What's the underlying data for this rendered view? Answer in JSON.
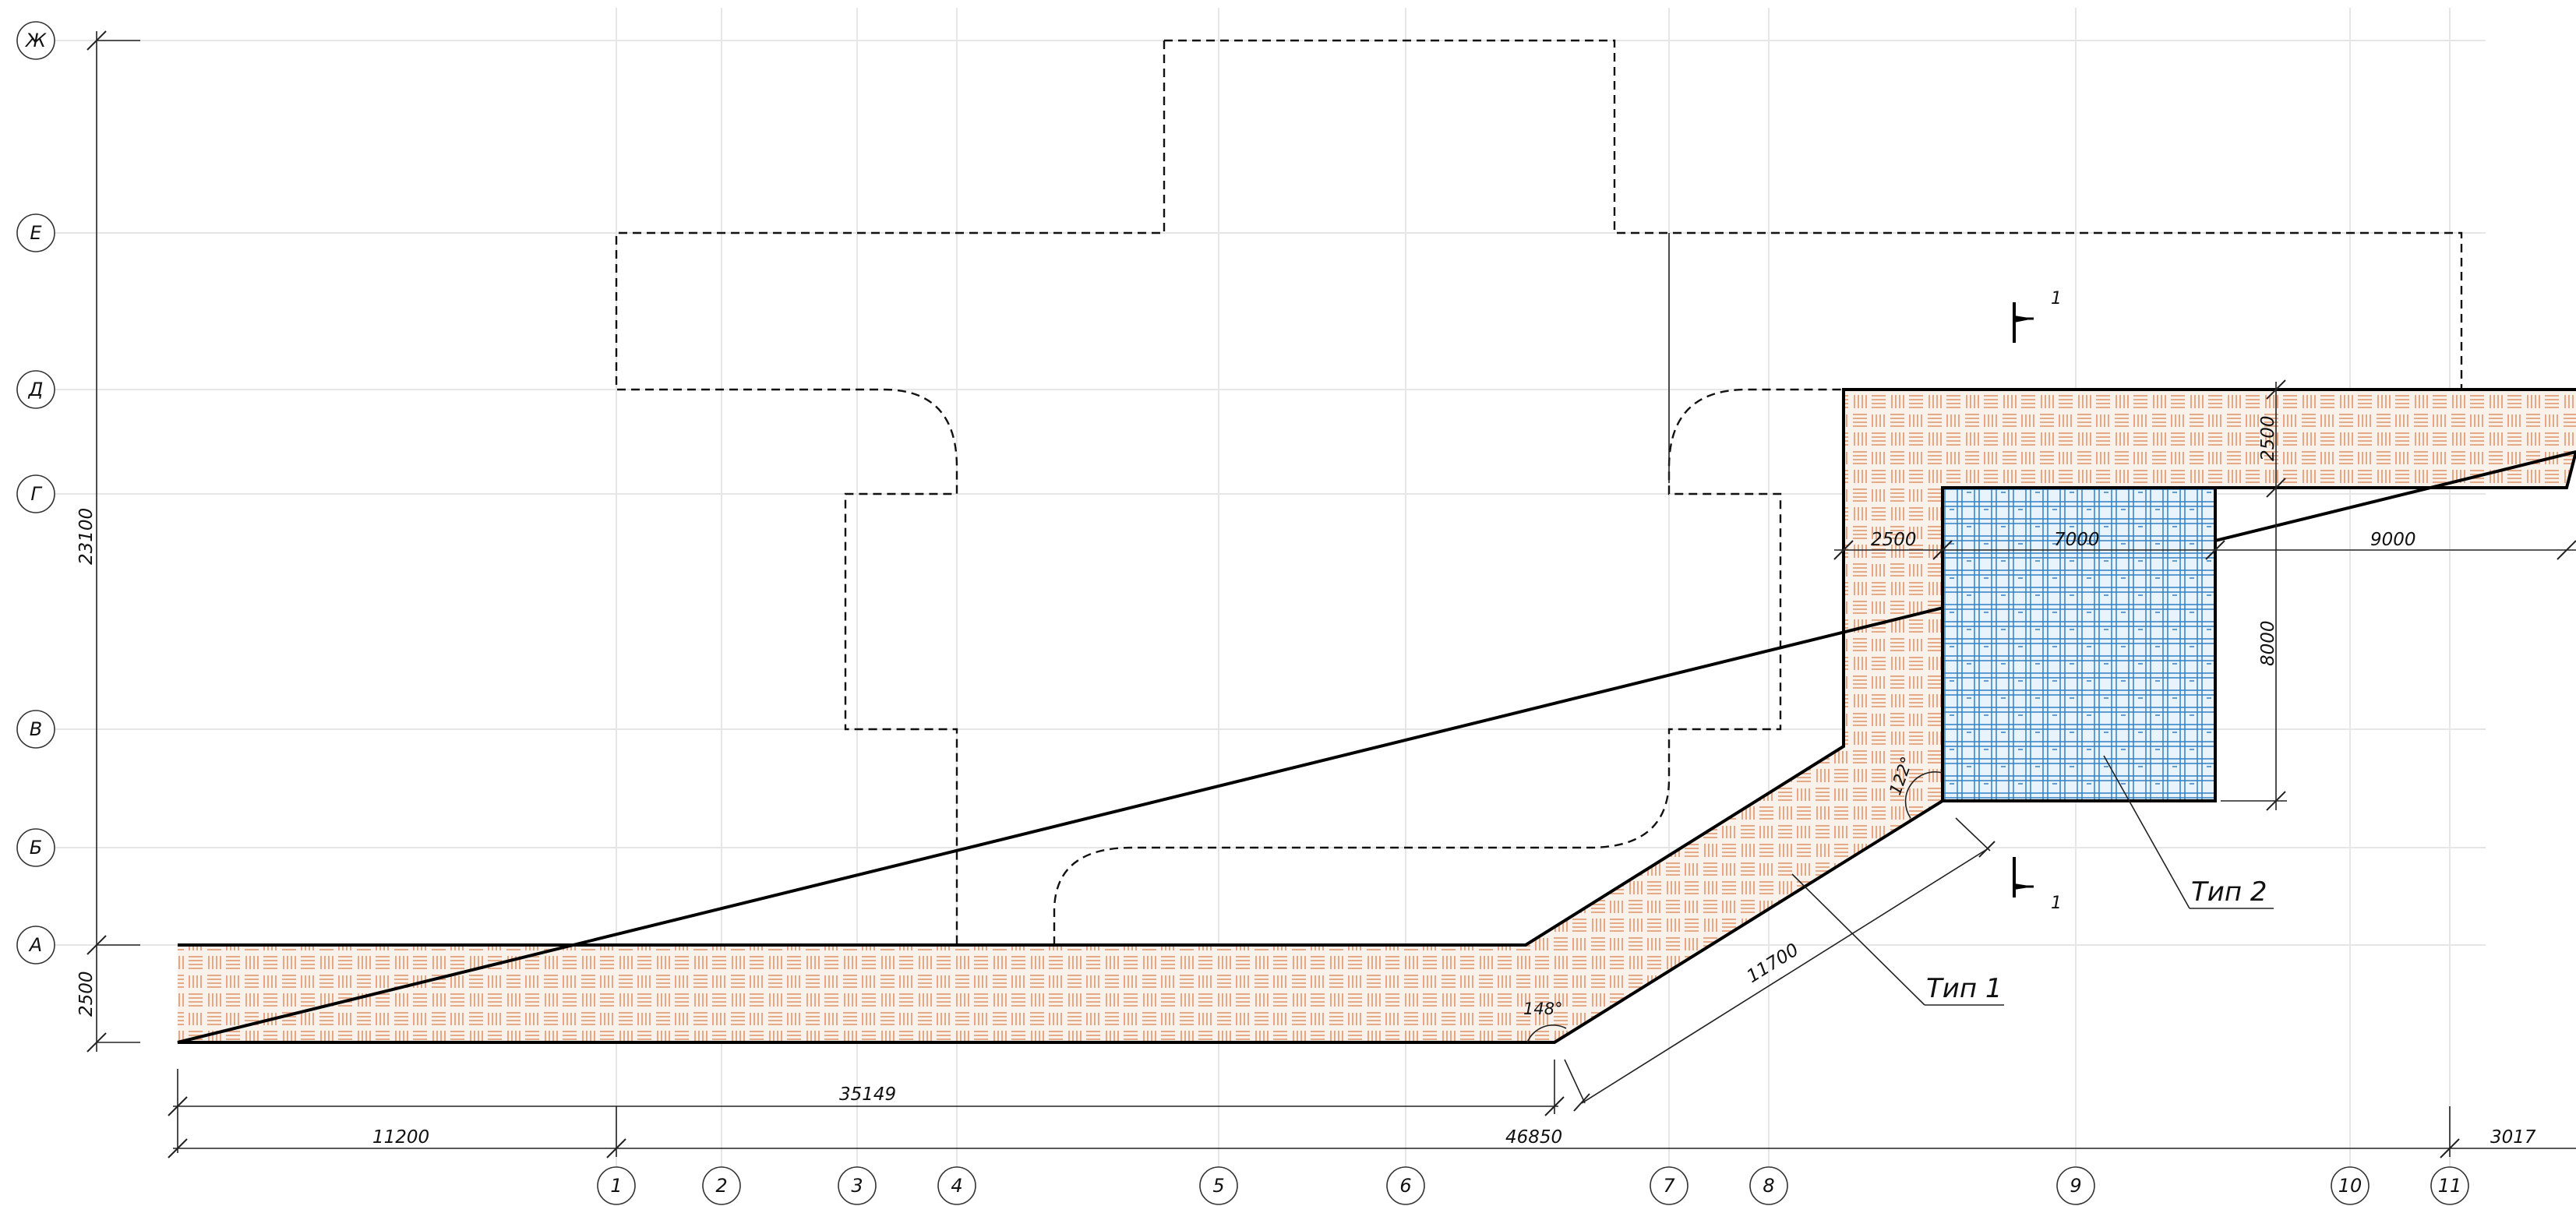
{
  "colors": {
    "hatch_type1": "#e2a07a",
    "hatch_type1_bg": "#fbf1eb",
    "hatch_type2": "#2f7fc4",
    "hatch_type2_bg": "#e9f3fb",
    "outline": "#000000",
    "grid": "#e6e6e6"
  },
  "row_axes": [
    {
      "id": "zh",
      "label": "Ж"
    },
    {
      "id": "e",
      "label": "Е"
    },
    {
      "id": "d",
      "label": "Д"
    },
    {
      "id": "g",
      "label": "Г"
    },
    {
      "id": "v",
      "label": "В"
    },
    {
      "id": "b",
      "label": "Б"
    },
    {
      "id": "a",
      "label": "А"
    }
  ],
  "col_axes": [
    {
      "id": "1",
      "label": "1"
    },
    {
      "id": "2",
      "label": "2"
    },
    {
      "id": "3",
      "label": "3"
    },
    {
      "id": "4",
      "label": "4"
    },
    {
      "id": "5",
      "label": "5"
    },
    {
      "id": "6",
      "label": "6"
    },
    {
      "id": "7",
      "label": "7"
    },
    {
      "id": "8",
      "label": "8"
    },
    {
      "id": "9",
      "label": "9"
    },
    {
      "id": "10",
      "label": "10"
    },
    {
      "id": "11",
      "label": "11"
    }
  ],
  "dimensions": {
    "overall_height": "23100",
    "strip_width_left": "2500",
    "strip_length": "35149",
    "span_to_axis1": "11200",
    "span_axis1_to_11": "46850",
    "span_after_11": "3017",
    "diagonal_length": "11700",
    "top_strip_width": "2500",
    "pocket_left_width": "2500",
    "zone2_width": "7000",
    "right_span": "9000",
    "zone2_height": "8000"
  },
  "angles": {
    "lower_bend": "148°",
    "upper_bend": "122°"
  },
  "section_mark": {
    "top_number": "1",
    "bottom_number": "1"
  },
  "callouts": {
    "type1": "Тип 1",
    "type2": "Тип 2"
  }
}
